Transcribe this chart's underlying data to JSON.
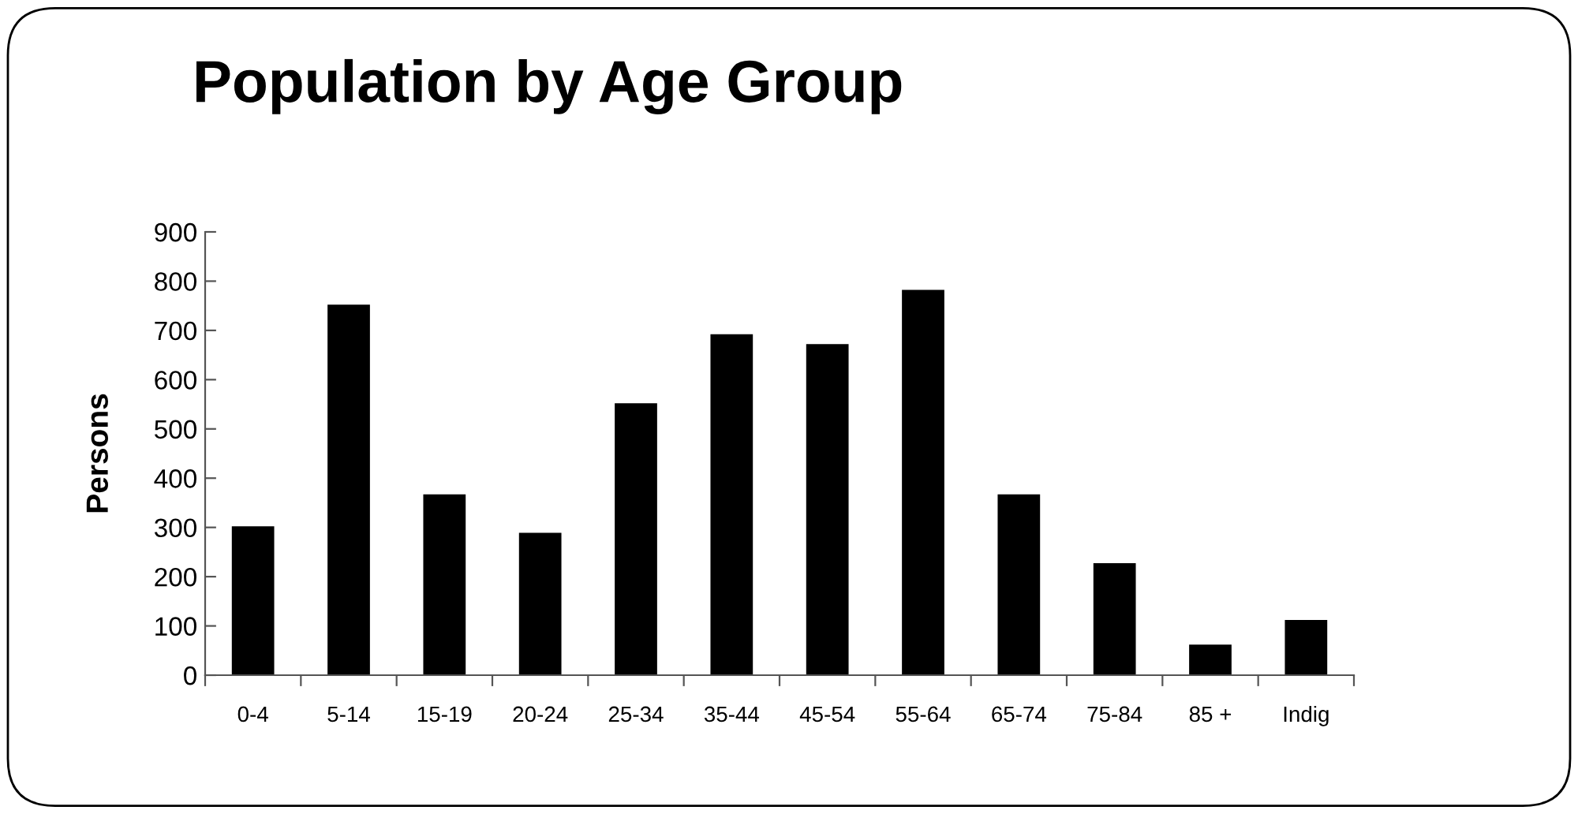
{
  "chart_data": {
    "type": "bar",
    "title": "Population by Age Group",
    "ylabel": "Persons",
    "categories": [
      "0-4",
      "5-14",
      "15-19",
      "20-24",
      "25-34",
      "35-44",
      "45-54",
      "55-64",
      "65-74",
      "75-84",
      "85 +",
      "Indig"
    ],
    "values": [
      300,
      750,
      365,
      287,
      550,
      690,
      670,
      780,
      365,
      225,
      60,
      110
    ],
    "color": "#000000",
    "ylim": [
      0,
      900
    ],
    "yticks": [
      0,
      100,
      200,
      300,
      400,
      500,
      600,
      700,
      800,
      900
    ],
    "grid": false,
    "legend": false
  }
}
